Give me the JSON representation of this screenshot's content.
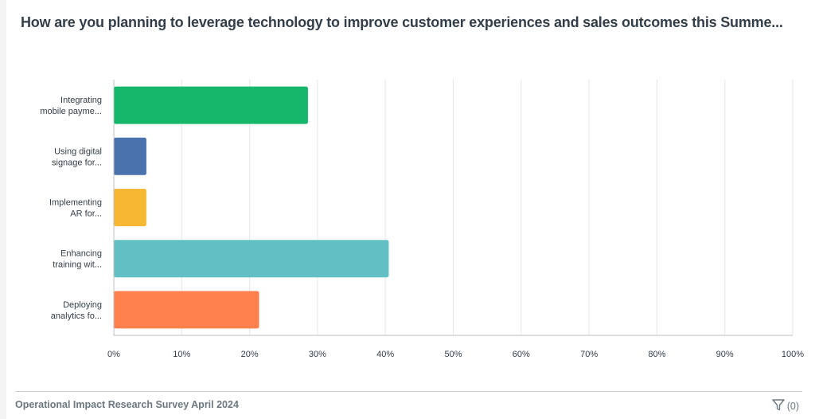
{
  "header": {
    "title": "How are you planning to leverage technology to improve customer experiences and sales outcomes this Summe..."
  },
  "footer": {
    "survey_name": "Operational Impact Research Survey April 2024",
    "filter_icon": "filter-icon",
    "filter_count": "(0)"
  },
  "chart_data": {
    "type": "bar",
    "orientation": "horizontal",
    "title": "How are you planning to leverage technology to improve customer experiences and sales outcomes this Summe...",
    "categories": [
      [
        "Integrating",
        "mobile payme..."
      ],
      [
        "Using digital",
        "signage for..."
      ],
      [
        "Implementing",
        "AR for..."
      ],
      [
        "Enhancing",
        "training wit..."
      ],
      [
        "Deploying",
        "analytics fo..."
      ]
    ],
    "values": [
      28.6,
      4.8,
      4.8,
      40.5,
      21.4
    ],
    "colors": [
      "#17b76b",
      "#4a72ac",
      "#f6b832",
      "#62c0c5",
      "#fe814d"
    ],
    "xlabel": "",
    "ylabel": "",
    "xlim": [
      0,
      100
    ],
    "xticks": [
      "0%",
      "10%",
      "20%",
      "30%",
      "40%",
      "50%",
      "60%",
      "70%",
      "80%",
      "90%",
      "100%"
    ],
    "grid": true,
    "legend": "none"
  }
}
